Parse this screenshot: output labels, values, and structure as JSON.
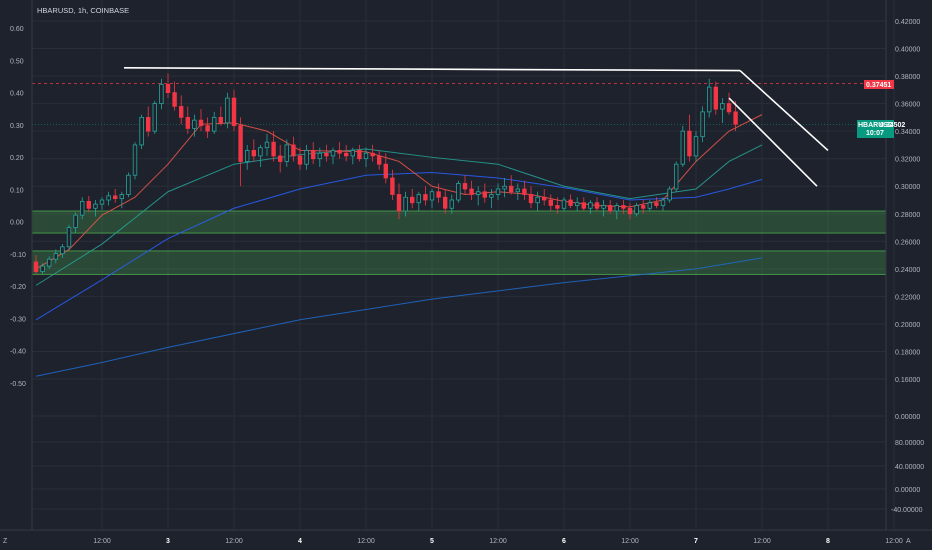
{
  "chart_data": {
    "type": "candlestick",
    "symbol_label": "HBARUSD, 1h, COINBASE",
    "left_axis": {
      "ticks": [
        "0.60",
        "0.50",
        "0.40",
        "0.30",
        "0.20",
        "0.10",
        "0.00",
        "-0.10",
        "-0.20",
        "-0.30",
        "-0.40",
        "-0.50"
      ],
      "values": [
        0.6,
        0.5,
        0.4,
        0.3,
        0.2,
        0.1,
        0.0,
        -0.1,
        -0.2,
        -0.3,
        -0.4,
        -0.5
      ]
    },
    "right_axis": {
      "price_ticks": [
        "0.42000",
        "0.40000",
        "0.38000",
        "0.36000",
        "0.34000",
        "0.32000",
        "0.30000",
        "0.28000",
        "0.26000",
        "0.24000",
        "0.22000",
        "0.20000",
        "0.18000",
        "0.16000"
      ],
      "price_values": [
        0.42,
        0.4,
        0.38,
        0.36,
        0.34,
        0.32,
        0.3,
        0.28,
        0.26,
        0.24,
        0.22,
        0.2,
        0.18,
        0.16
      ],
      "lower_ticks": [
        "0.00000",
        "80.00000",
        "40.00000",
        "0.00000",
        "-40.00000"
      ]
    },
    "x_axis": {
      "labels": [
        "12:00",
        "3",
        "12:00",
        "4",
        "12:00",
        "5",
        "12:00",
        "6",
        "12:00",
        "7",
        "12:00",
        "8",
        "12:00"
      ],
      "hours": [
        12,
        24,
        36,
        48,
        60,
        72,
        84,
        96,
        108,
        120,
        132,
        144,
        156
      ]
    },
    "price_badges": {
      "red": "0.37451",
      "green_name": "HBARUSD",
      "green_price": "0.34502",
      "green_time": "10:07"
    },
    "corner_left": "Z",
    "corner_right": "A",
    "candles_ohlc": [
      [
        0.245,
        0.25,
        0.236,
        0.238
      ],
      [
        0.238,
        0.244,
        0.236,
        0.242
      ],
      [
        0.242,
        0.249,
        0.24,
        0.247
      ],
      [
        0.247,
        0.254,
        0.244,
        0.251
      ],
      [
        0.251,
        0.258,
        0.248,
        0.256
      ],
      [
        0.256,
        0.272,
        0.254,
        0.27
      ],
      [
        0.27,
        0.281,
        0.266,
        0.279
      ],
      [
        0.279,
        0.292,
        0.276,
        0.289
      ],
      [
        0.289,
        0.293,
        0.281,
        0.284
      ],
      [
        0.284,
        0.29,
        0.278,
        0.287
      ],
      [
        0.287,
        0.292,
        0.283,
        0.29
      ],
      [
        0.29,
        0.296,
        0.286,
        0.293
      ],
      [
        0.293,
        0.298,
        0.288,
        0.291
      ],
      [
        0.291,
        0.296,
        0.284,
        0.294
      ],
      [
        0.294,
        0.31,
        0.292,
        0.308
      ],
      [
        0.308,
        0.332,
        0.305,
        0.33
      ],
      [
        0.33,
        0.352,
        0.327,
        0.35
      ],
      [
        0.35,
        0.358,
        0.336,
        0.34
      ],
      [
        0.34,
        0.362,
        0.338,
        0.36
      ],
      [
        0.36,
        0.378,
        0.356,
        0.374
      ],
      [
        0.374,
        0.382,
        0.364,
        0.368
      ],
      [
        0.368,
        0.376,
        0.355,
        0.358
      ],
      [
        0.358,
        0.366,
        0.345,
        0.35
      ],
      [
        0.35,
        0.358,
        0.338,
        0.342
      ],
      [
        0.342,
        0.352,
        0.336,
        0.348
      ],
      [
        0.348,
        0.356,
        0.34,
        0.344
      ],
      [
        0.344,
        0.35,
        0.335,
        0.34
      ],
      [
        0.34,
        0.354,
        0.338,
        0.35
      ],
      [
        0.35,
        0.358,
        0.344,
        0.346
      ],
      [
        0.346,
        0.368,
        0.342,
        0.364
      ],
      [
        0.364,
        0.37,
        0.34,
        0.344
      ],
      [
        0.344,
        0.35,
        0.3,
        0.318
      ],
      [
        0.318,
        0.33,
        0.312,
        0.326
      ],
      [
        0.326,
        0.334,
        0.318,
        0.322
      ],
      [
        0.322,
        0.33,
        0.314,
        0.328
      ],
      [
        0.328,
        0.338,
        0.322,
        0.332
      ],
      [
        0.332,
        0.34,
        0.318,
        0.322
      ],
      [
        0.322,
        0.33,
        0.31,
        0.318
      ],
      [
        0.318,
        0.334,
        0.314,
        0.33
      ],
      [
        0.33,
        0.336,
        0.318,
        0.322
      ],
      [
        0.322,
        0.328,
        0.312,
        0.316
      ],
      [
        0.316,
        0.33,
        0.312,
        0.326
      ],
      [
        0.326,
        0.332,
        0.316,
        0.32
      ],
      [
        0.32,
        0.328,
        0.314,
        0.324
      ],
      [
        0.324,
        0.33,
        0.318,
        0.322
      ],
      [
        0.322,
        0.328,
        0.316,
        0.326
      ],
      [
        0.326,
        0.332,
        0.32,
        0.324
      ],
      [
        0.324,
        0.33,
        0.318,
        0.322
      ],
      [
        0.322,
        0.328,
        0.316,
        0.326
      ],
      [
        0.326,
        0.33,
        0.318,
        0.32
      ],
      [
        0.32,
        0.328,
        0.314,
        0.324
      ],
      [
        0.324,
        0.33,
        0.318,
        0.322
      ],
      [
        0.322,
        0.326,
        0.312,
        0.316
      ],
      [
        0.316,
        0.324,
        0.302,
        0.306
      ],
      [
        0.306,
        0.312,
        0.29,
        0.294
      ],
      [
        0.294,
        0.302,
        0.276,
        0.282
      ],
      [
        0.282,
        0.296,
        0.278,
        0.292
      ],
      [
        0.292,
        0.298,
        0.284,
        0.288
      ],
      [
        0.288,
        0.296,
        0.282,
        0.294
      ],
      [
        0.294,
        0.3,
        0.286,
        0.29
      ],
      [
        0.29,
        0.298,
        0.284,
        0.296
      ],
      [
        0.296,
        0.302,
        0.288,
        0.292
      ],
      [
        0.292,
        0.298,
        0.28,
        0.284
      ],
      [
        0.284,
        0.294,
        0.28,
        0.29
      ],
      [
        0.29,
        0.304,
        0.288,
        0.302
      ],
      [
        0.302,
        0.308,
        0.294,
        0.298
      ],
      [
        0.298,
        0.304,
        0.29,
        0.294
      ],
      [
        0.294,
        0.3,
        0.286,
        0.296
      ],
      [
        0.296,
        0.302,
        0.288,
        0.292
      ],
      [
        0.292,
        0.298,
        0.284,
        0.294
      ],
      [
        0.294,
        0.302,
        0.29,
        0.298
      ],
      [
        0.298,
        0.306,
        0.292,
        0.3
      ],
      [
        0.3,
        0.308,
        0.294,
        0.296
      ],
      [
        0.296,
        0.302,
        0.29,
        0.298
      ],
      [
        0.298,
        0.304,
        0.29,
        0.294
      ],
      [
        0.294,
        0.3,
        0.284,
        0.288
      ],
      [
        0.288,
        0.296,
        0.282,
        0.292
      ],
      [
        0.292,
        0.298,
        0.286,
        0.29
      ],
      [
        0.29,
        0.294,
        0.282,
        0.286
      ],
      [
        0.286,
        0.292,
        0.28,
        0.284
      ],
      [
        0.284,
        0.292,
        0.282,
        0.29
      ],
      [
        0.29,
        0.294,
        0.284,
        0.286
      ],
      [
        0.286,
        0.292,
        0.282,
        0.288
      ],
      [
        0.288,
        0.292,
        0.282,
        0.284
      ],
      [
        0.284,
        0.29,
        0.28,
        0.288
      ],
      [
        0.288,
        0.292,
        0.282,
        0.284
      ],
      [
        0.284,
        0.29,
        0.278,
        0.286
      ],
      [
        0.286,
        0.29,
        0.28,
        0.282
      ],
      [
        0.282,
        0.288,
        0.276,
        0.286
      ],
      [
        0.286,
        0.29,
        0.28,
        0.284
      ],
      [
        0.284,
        0.288,
        0.276,
        0.28
      ],
      [
        0.28,
        0.288,
        0.278,
        0.286
      ],
      [
        0.286,
        0.29,
        0.28,
        0.284
      ],
      [
        0.284,
        0.29,
        0.282,
        0.288
      ],
      [
        0.288,
        0.292,
        0.284,
        0.286
      ],
      [
        0.286,
        0.292,
        0.282,
        0.29
      ],
      [
        0.29,
        0.3,
        0.288,
        0.298
      ],
      [
        0.298,
        0.318,
        0.296,
        0.316
      ],
      [
        0.316,
        0.344,
        0.314,
        0.34
      ],
      [
        0.34,
        0.352,
        0.318,
        0.322
      ],
      [
        0.322,
        0.34,
        0.318,
        0.336
      ],
      [
        0.336,
        0.358,
        0.332,
        0.354
      ],
      [
        0.354,
        0.378,
        0.35,
        0.372
      ],
      [
        0.372,
        0.376,
        0.352,
        0.356
      ],
      [
        0.356,
        0.364,
        0.346,
        0.36
      ],
      [
        0.36,
        0.368,
        0.352,
        0.354
      ],
      [
        0.354,
        0.362,
        0.34,
        0.345
      ]
    ],
    "start_hour": 0,
    "overlay_lines": {
      "red_ma": [
        [
          0,
          0.24
        ],
        [
          6,
          0.254
        ],
        [
          12,
          0.279
        ],
        [
          18,
          0.292
        ],
        [
          24,
          0.316
        ],
        [
          30,
          0.345
        ],
        [
          36,
          0.346
        ],
        [
          42,
          0.34
        ],
        [
          48,
          0.326
        ],
        [
          60,
          0.325
        ],
        [
          66,
          0.318
        ],
        [
          72,
          0.3
        ],
        [
          78,
          0.294
        ],
        [
          84,
          0.296
        ],
        [
          90,
          0.294
        ],
        [
          96,
          0.289
        ],
        [
          102,
          0.286
        ],
        [
          108,
          0.285
        ],
        [
          114,
          0.29
        ],
        [
          120,
          0.318
        ],
        [
          126,
          0.34
        ],
        [
          132,
          0.352
        ]
      ],
      "teal_ma": [
        [
          0,
          0.228
        ],
        [
          12,
          0.258
        ],
        [
          24,
          0.296
        ],
        [
          36,
          0.316
        ],
        [
          48,
          0.323
        ],
        [
          60,
          0.327
        ],
        [
          72,
          0.321
        ],
        [
          84,
          0.316
        ],
        [
          96,
          0.3
        ],
        [
          108,
          0.291
        ],
        [
          120,
          0.298
        ],
        [
          126,
          0.318
        ],
        [
          132,
          0.33
        ]
      ],
      "blue_ma": [
        [
          0,
          0.203
        ],
        [
          12,
          0.232
        ],
        [
          24,
          0.262
        ],
        [
          36,
          0.284
        ],
        [
          48,
          0.298
        ],
        [
          60,
          0.308
        ],
        [
          72,
          0.31
        ],
        [
          84,
          0.306
        ],
        [
          96,
          0.299
        ],
        [
          108,
          0.29
        ],
        [
          120,
          0.292
        ],
        [
          126,
          0.298
        ],
        [
          132,
          0.305
        ]
      ],
      "long_ma": [
        [
          0,
          0.162
        ],
        [
          12,
          0.172
        ],
        [
          24,
          0.183
        ],
        [
          48,
          0.203
        ],
        [
          72,
          0.218
        ],
        [
          96,
          0.23
        ],
        [
          120,
          0.24
        ],
        [
          132,
          0.248
        ]
      ],
      "trend_top": [
        [
          16,
          0.386
        ],
        [
          128,
          0.384
        ]
      ],
      "trend_down_a": [
        [
          128,
          0.384
        ],
        [
          144,
          0.326
        ]
      ],
      "trend_down_b": [
        [
          126,
          0.364
        ],
        [
          142,
          0.3
        ]
      ]
    },
    "zones": [
      {
        "top": 0.282,
        "bottom": 0.266
      },
      {
        "top": 0.253,
        "bottom": 0.236
      }
    ],
    "dashed_red_level": 0.37451,
    "dashed_teal_level": 0.34502
  }
}
